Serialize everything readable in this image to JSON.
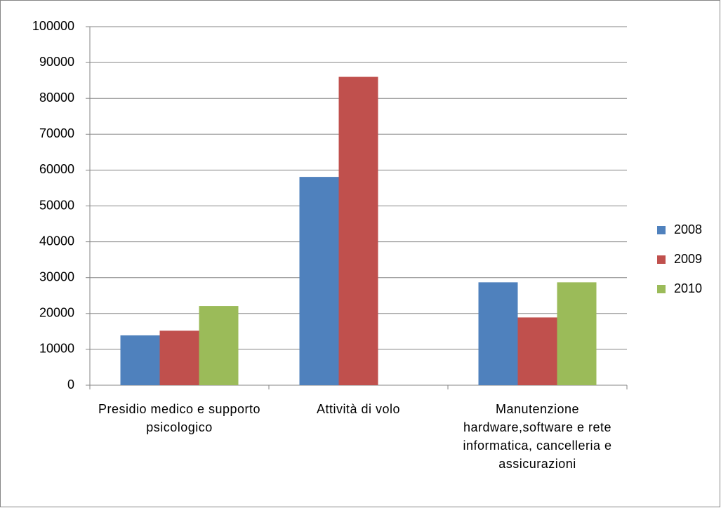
{
  "chart_data": {
    "type": "bar",
    "categories": [
      "Presidio medico e supporto psicologico",
      "Attività di volo",
      "Manutenzione hardware,software e rete informatica, cancelleria e assicurazioni"
    ],
    "series": [
      {
        "name": "2008",
        "color": "#4f81bd",
        "values": [
          13900,
          58100,
          28700
        ]
      },
      {
        "name": "2009",
        "color": "#c0504d",
        "values": [
          15200,
          86000,
          18900
        ]
      },
      {
        "name": "2010",
        "color": "#9bbb59",
        "values": [
          22100,
          null,
          28700
        ]
      }
    ],
    "ylim": [
      0,
      100000
    ],
    "yticks": [
      0,
      10000,
      20000,
      30000,
      40000,
      50000,
      60000,
      70000,
      80000,
      90000,
      100000
    ],
    "grid": true,
    "legend": "right"
  }
}
